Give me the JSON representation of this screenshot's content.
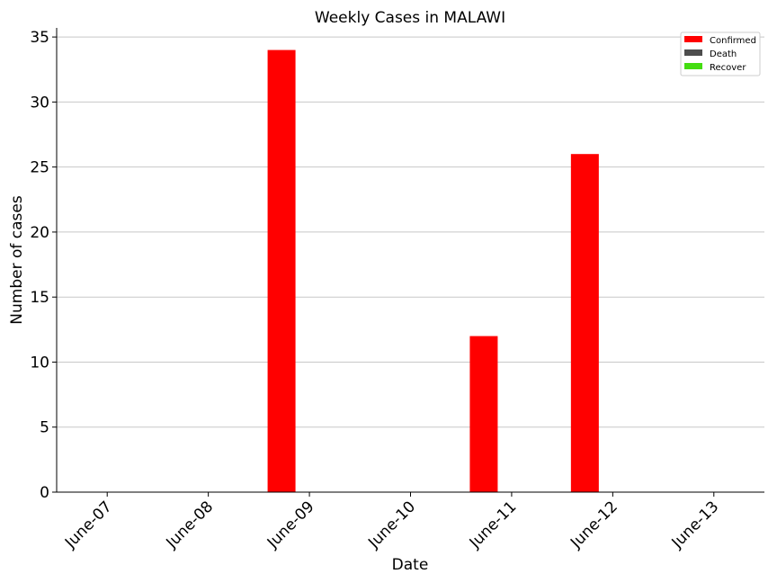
{
  "chart_data": {
    "type": "bar",
    "title": "Weekly Cases in MALAWI",
    "xlabel": "Date",
    "ylabel": "Number of cases",
    "categories": [
      "June-07",
      "June-08",
      "June-09",
      "June-10",
      "June-11",
      "June-12",
      "June-13"
    ],
    "series": [
      {
        "name": "Confirmed",
        "color": "#ff0000",
        "values": [
          0,
          0,
          34,
          0,
          12,
          26,
          0
        ]
      },
      {
        "name": "Death",
        "color": "#4d4d4d",
        "values": [
          0,
          0,
          0,
          0,
          0,
          0,
          0
        ]
      },
      {
        "name": "Recover",
        "color": "#44dd11",
        "values": [
          0,
          0,
          0,
          0,
          0,
          0,
          0
        ]
      }
    ],
    "ylim": [
      0,
      35.7
    ],
    "yticks": [
      0,
      5,
      10,
      15,
      20,
      25,
      30,
      35
    ],
    "grid": "y",
    "legend_position": "top-right"
  }
}
